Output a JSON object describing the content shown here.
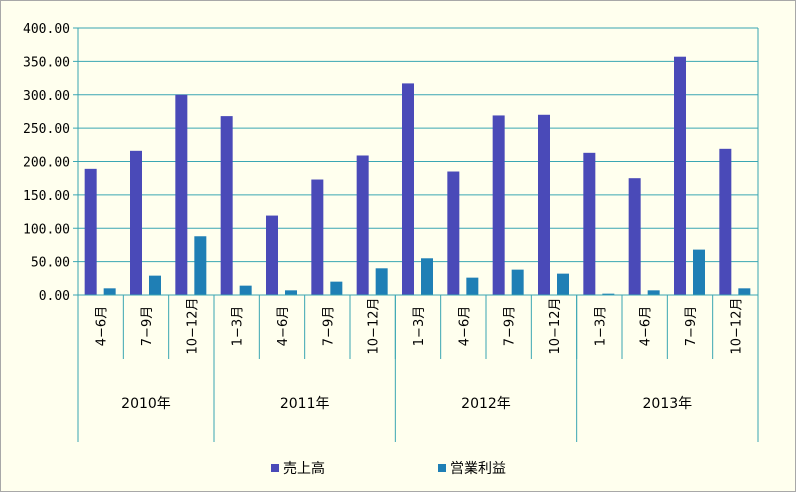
{
  "colors": {
    "background": "#ffffee",
    "axis": "#3aa6b3",
    "grid": "#3aa6b3",
    "series_sales": "#4a4ab8",
    "series_profit": "#1f7fb5"
  },
  "chart_data": {
    "type": "bar",
    "title": "",
    "xlabel": "",
    "ylabel": "",
    "ylim": [
      0,
      400
    ],
    "y_ticks": [
      "0.00",
      "50.00",
      "100.00",
      "150.00",
      "200.00",
      "250.00",
      "300.00",
      "350.00",
      "400.00"
    ],
    "grid": true,
    "legend_position": "bottom",
    "categories": [
      "4−6月",
      "7−9月",
      "10−12月",
      "1−3月",
      "4−6月",
      "7−9月",
      "10−12月",
      "1−3月",
      "4−6月",
      "7−9月",
      "10−12月",
      "1−3月",
      "4−6月",
      "7−9月",
      "10−12月"
    ],
    "groups": [
      {
        "label": "2010年",
        "count": 3
      },
      {
        "label": "2011年",
        "count": 4
      },
      {
        "label": "2012年",
        "count": 4
      },
      {
        "label": "2013年",
        "count": 4
      }
    ],
    "series": [
      {
        "name": "売上高",
        "values": [
          189,
          216,
          300,
          268,
          119,
          173,
          209,
          317,
          185,
          269,
          270,
          213,
          175,
          357,
          219
        ]
      },
      {
        "name": "営業利益",
        "values": [
          10,
          29,
          88,
          14,
          7,
          20,
          40,
          55,
          26,
          38,
          32,
          2,
          7,
          68,
          10
        ]
      }
    ]
  }
}
